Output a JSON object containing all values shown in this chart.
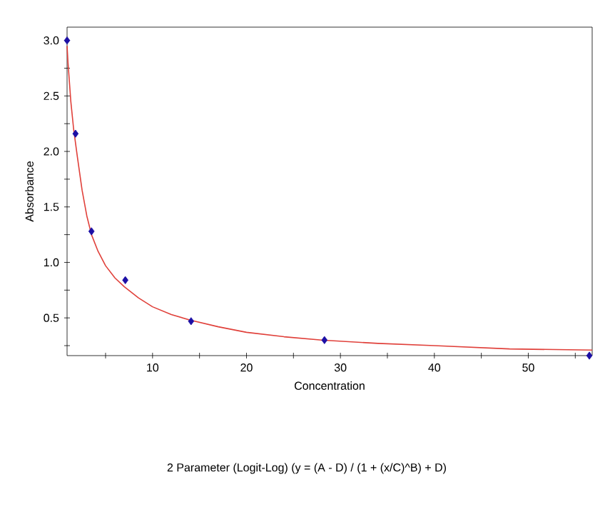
{
  "chart_data": {
    "type": "scatter",
    "xlabel": "Concentration",
    "ylabel": "Absorbance",
    "annotations": [
      "2 Parameter (Logit-Log) (y = (A - D) / (1 + (x/C)^B) + D)"
    ],
    "series": [
      {
        "marker": "diamond",
        "color": "#1c0fa5",
        "x": [
          0.9,
          1.8,
          3.5,
          7.1,
          14.1,
          28.3,
          56.5
        ],
        "values": [
          3.0,
          2.16,
          1.28,
          0.84,
          0.47,
          0.3,
          0.16
        ]
      },
      {
        "type": "line",
        "marker": "none",
        "color": "#e0403a",
        "x": [
          0.9,
          1.0,
          1.3,
          1.6,
          2.0,
          2.5,
          3.0,
          3.5,
          4.2,
          5.0,
          6.0,
          7.0,
          8.5,
          10,
          12,
          14,
          17,
          20,
          24,
          28,
          34,
          40,
          48,
          56.8
        ],
        "values": [
          2.95,
          2.8,
          2.45,
          2.2,
          1.95,
          1.65,
          1.42,
          1.25,
          1.1,
          0.97,
          0.86,
          0.78,
          0.68,
          0.6,
          0.53,
          0.48,
          0.42,
          0.37,
          0.33,
          0.3,
          0.27,
          0.25,
          0.22,
          0.21
        ]
      }
    ],
    "xlim": [
      0.9,
      56.8
    ],
    "ylim": [
      0.16,
      3.12
    ],
    "xticks": [
      {
        "value": 5,
        "label": null
      },
      10,
      {
        "value": 15,
        "label": null
      },
      20,
      {
        "value": 25,
        "label": null
      },
      30,
      {
        "value": 35,
        "label": null
      },
      40,
      {
        "value": 45,
        "label": null
      },
      50,
      {
        "value": 55,
        "label": null
      }
    ],
    "yticks": [
      {
        "value": 0.25,
        "label": null
      },
      {
        "value": 0.5,
        "label": "0.5"
      },
      {
        "value": 0.75,
        "label": null
      },
      {
        "value": 1.0,
        "label": "1.0"
      },
      {
        "value": 1.25,
        "label": null
      },
      {
        "value": 1.5,
        "label": "1.5"
      },
      {
        "value": 1.75,
        "label": null
      },
      {
        "value": 2.0,
        "label": "2.0"
      },
      {
        "value": 2.25,
        "label": null
      },
      {
        "value": 2.5,
        "label": "2.5"
      },
      {
        "value": 2.75,
        "label": null
      },
      {
        "value": 3.0,
        "label": "3.0"
      }
    ],
    "grid": false
  }
}
